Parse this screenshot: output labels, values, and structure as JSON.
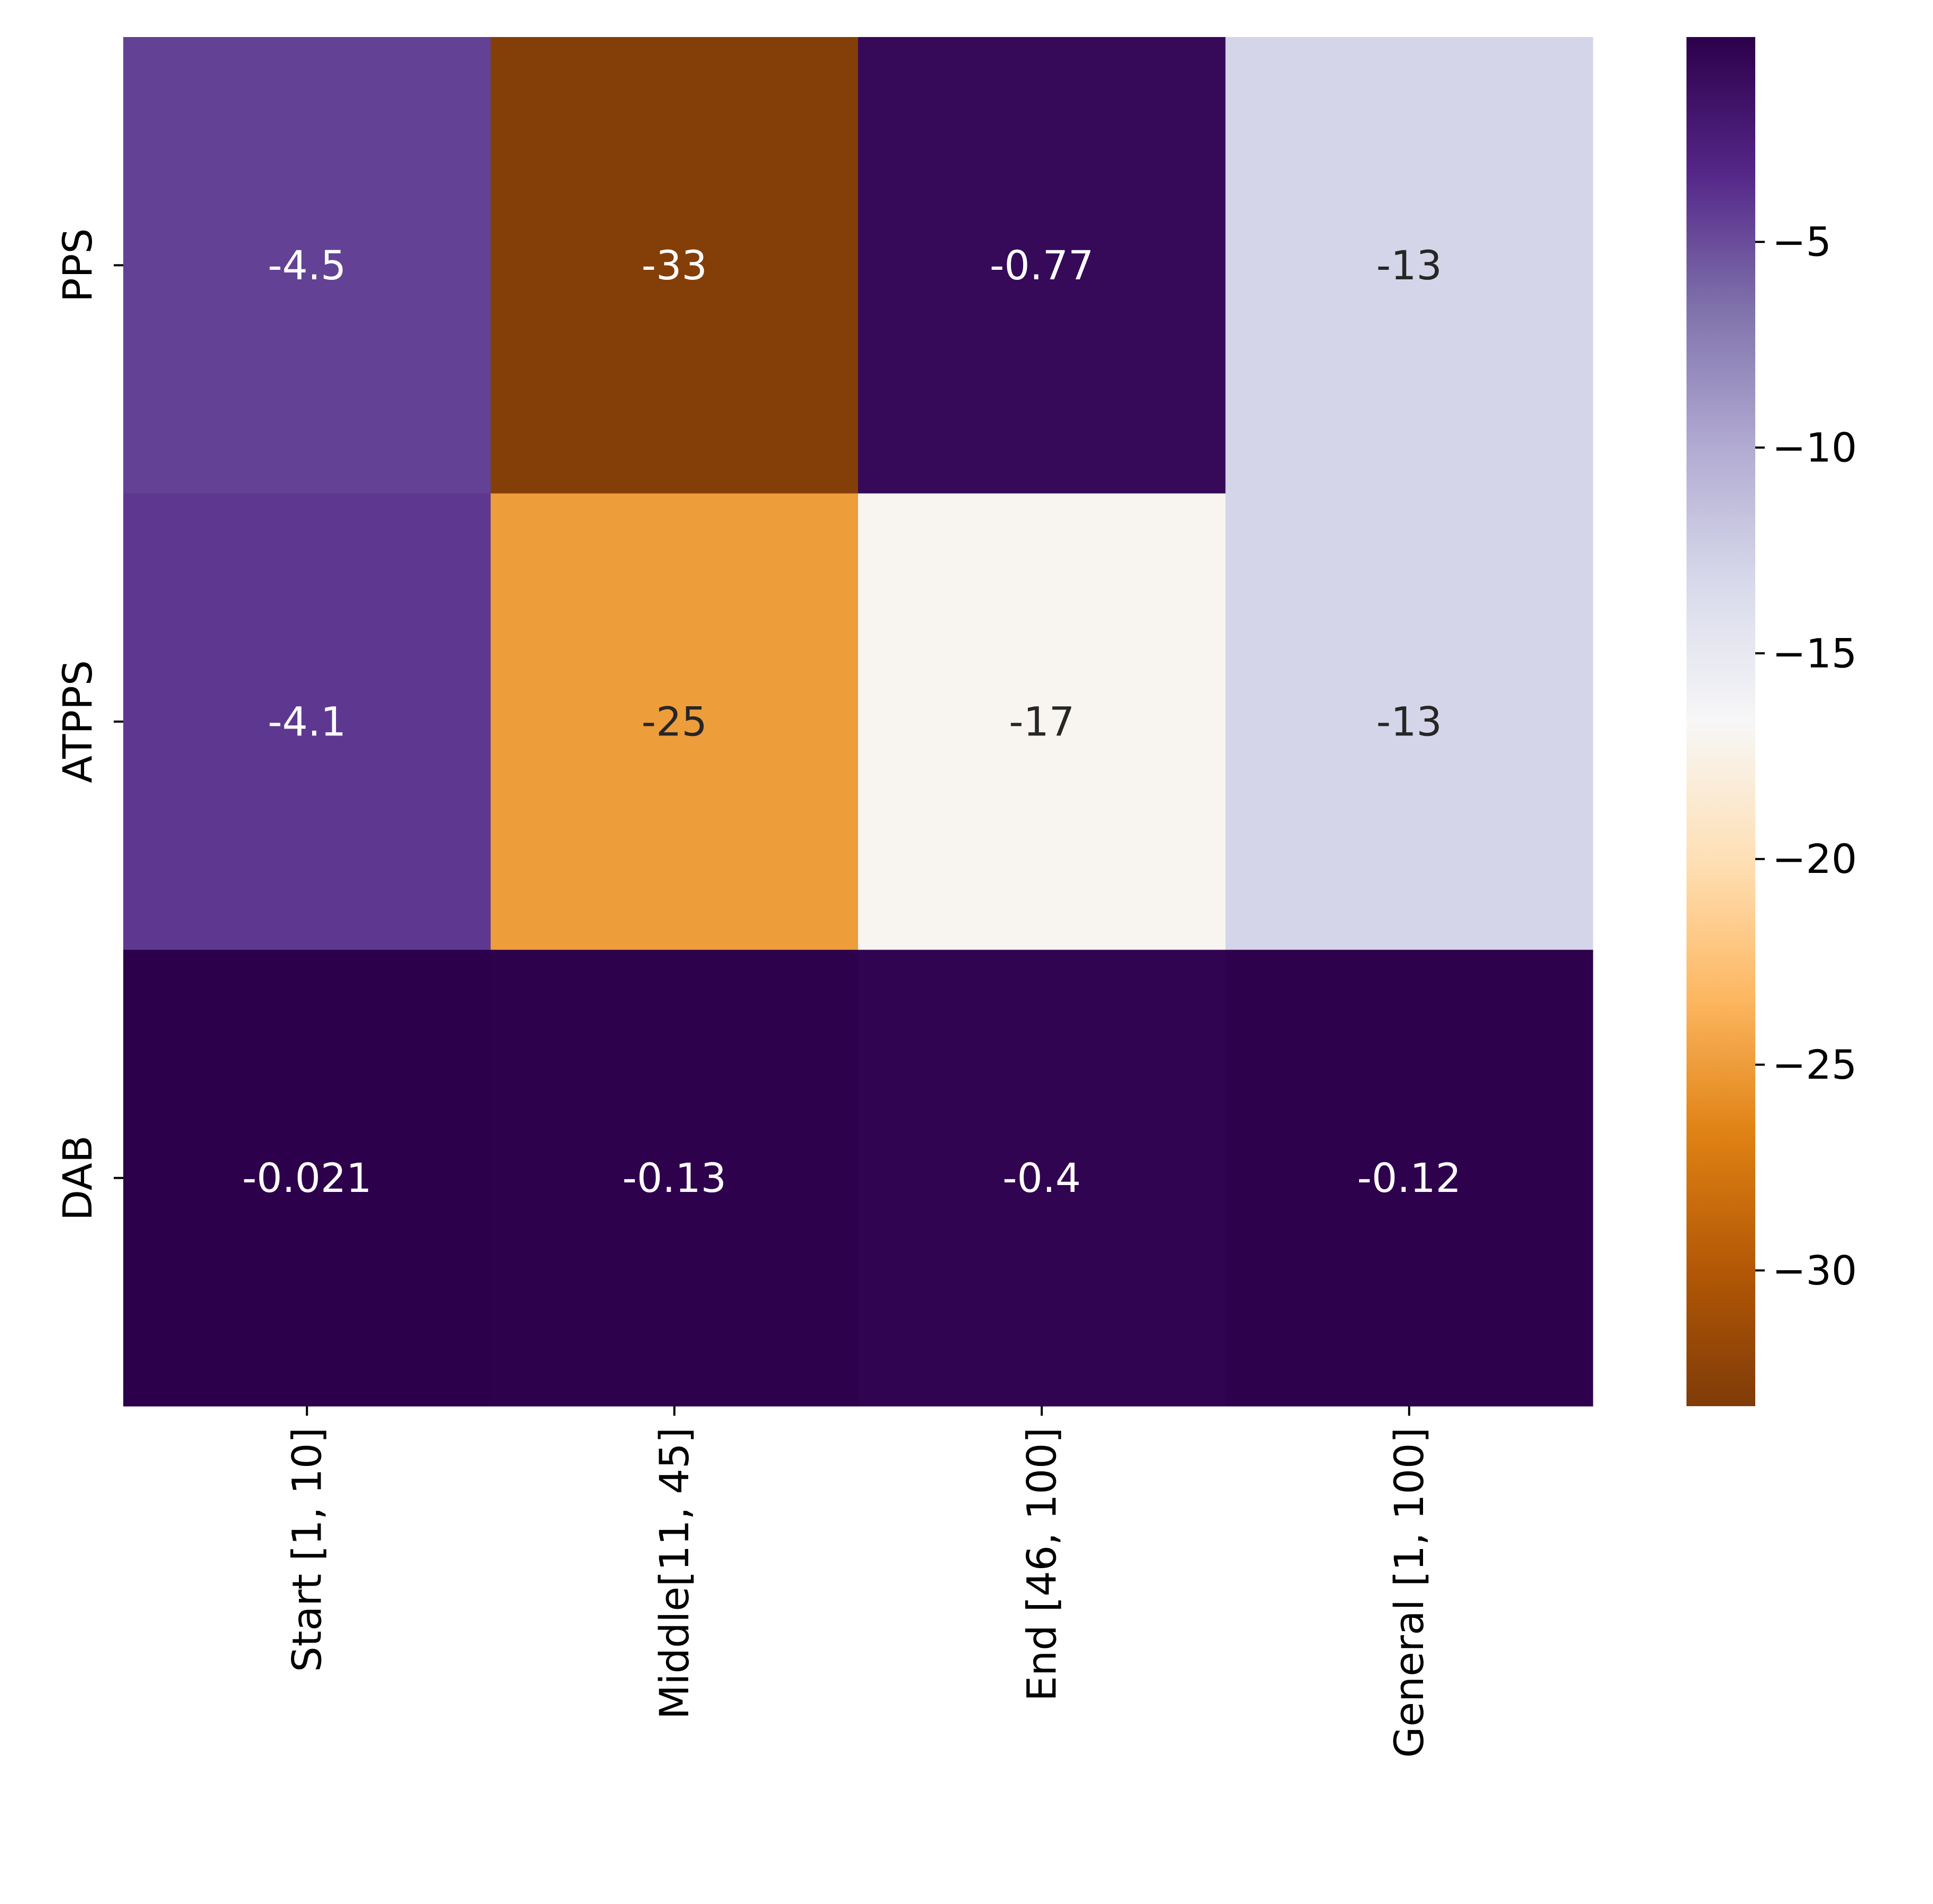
{
  "chart_data": {
    "type": "heatmap",
    "rows": [
      "PPS",
      "ATPPS",
      "DAB"
    ],
    "columns": [
      "Start [1, 10]",
      "Middle[11, 45]",
      "End [46, 100]",
      "General [1, 100]"
    ],
    "values": [
      [
        -4.5,
        -33,
        -0.77,
        -13
      ],
      [
        -4.1,
        -25,
        -17,
        -13
      ],
      [
        -0.021,
        -0.13,
        -0.4,
        -0.12
      ]
    ],
    "annotations": [
      [
        "-4.5",
        "-33",
        "-0.77",
        "-13"
      ],
      [
        "-4.1",
        "-25",
        "-17",
        "-13"
      ],
      [
        "-0.021",
        "-0.13",
        "-0.4",
        "-0.12"
      ]
    ],
    "colorbar": {
      "range": [
        -33.3,
        -0.021
      ],
      "ticks": [
        -5,
        -10,
        -15,
        -20,
        -25,
        -30
      ],
      "tick_labels": [
        "−5",
        "−10",
        "−15",
        "−20",
        "−25",
        "−30"
      ],
      "colormap": "PuOr",
      "colormap_stops": [
        "#2d004b",
        "#542788",
        "#8073ac",
        "#b2abd2",
        "#d8daeb",
        "#f7f7f7",
        "#fee0b6",
        "#fdb863",
        "#e08214",
        "#b35806",
        "#7f3b08"
      ]
    },
    "grid": false
  }
}
